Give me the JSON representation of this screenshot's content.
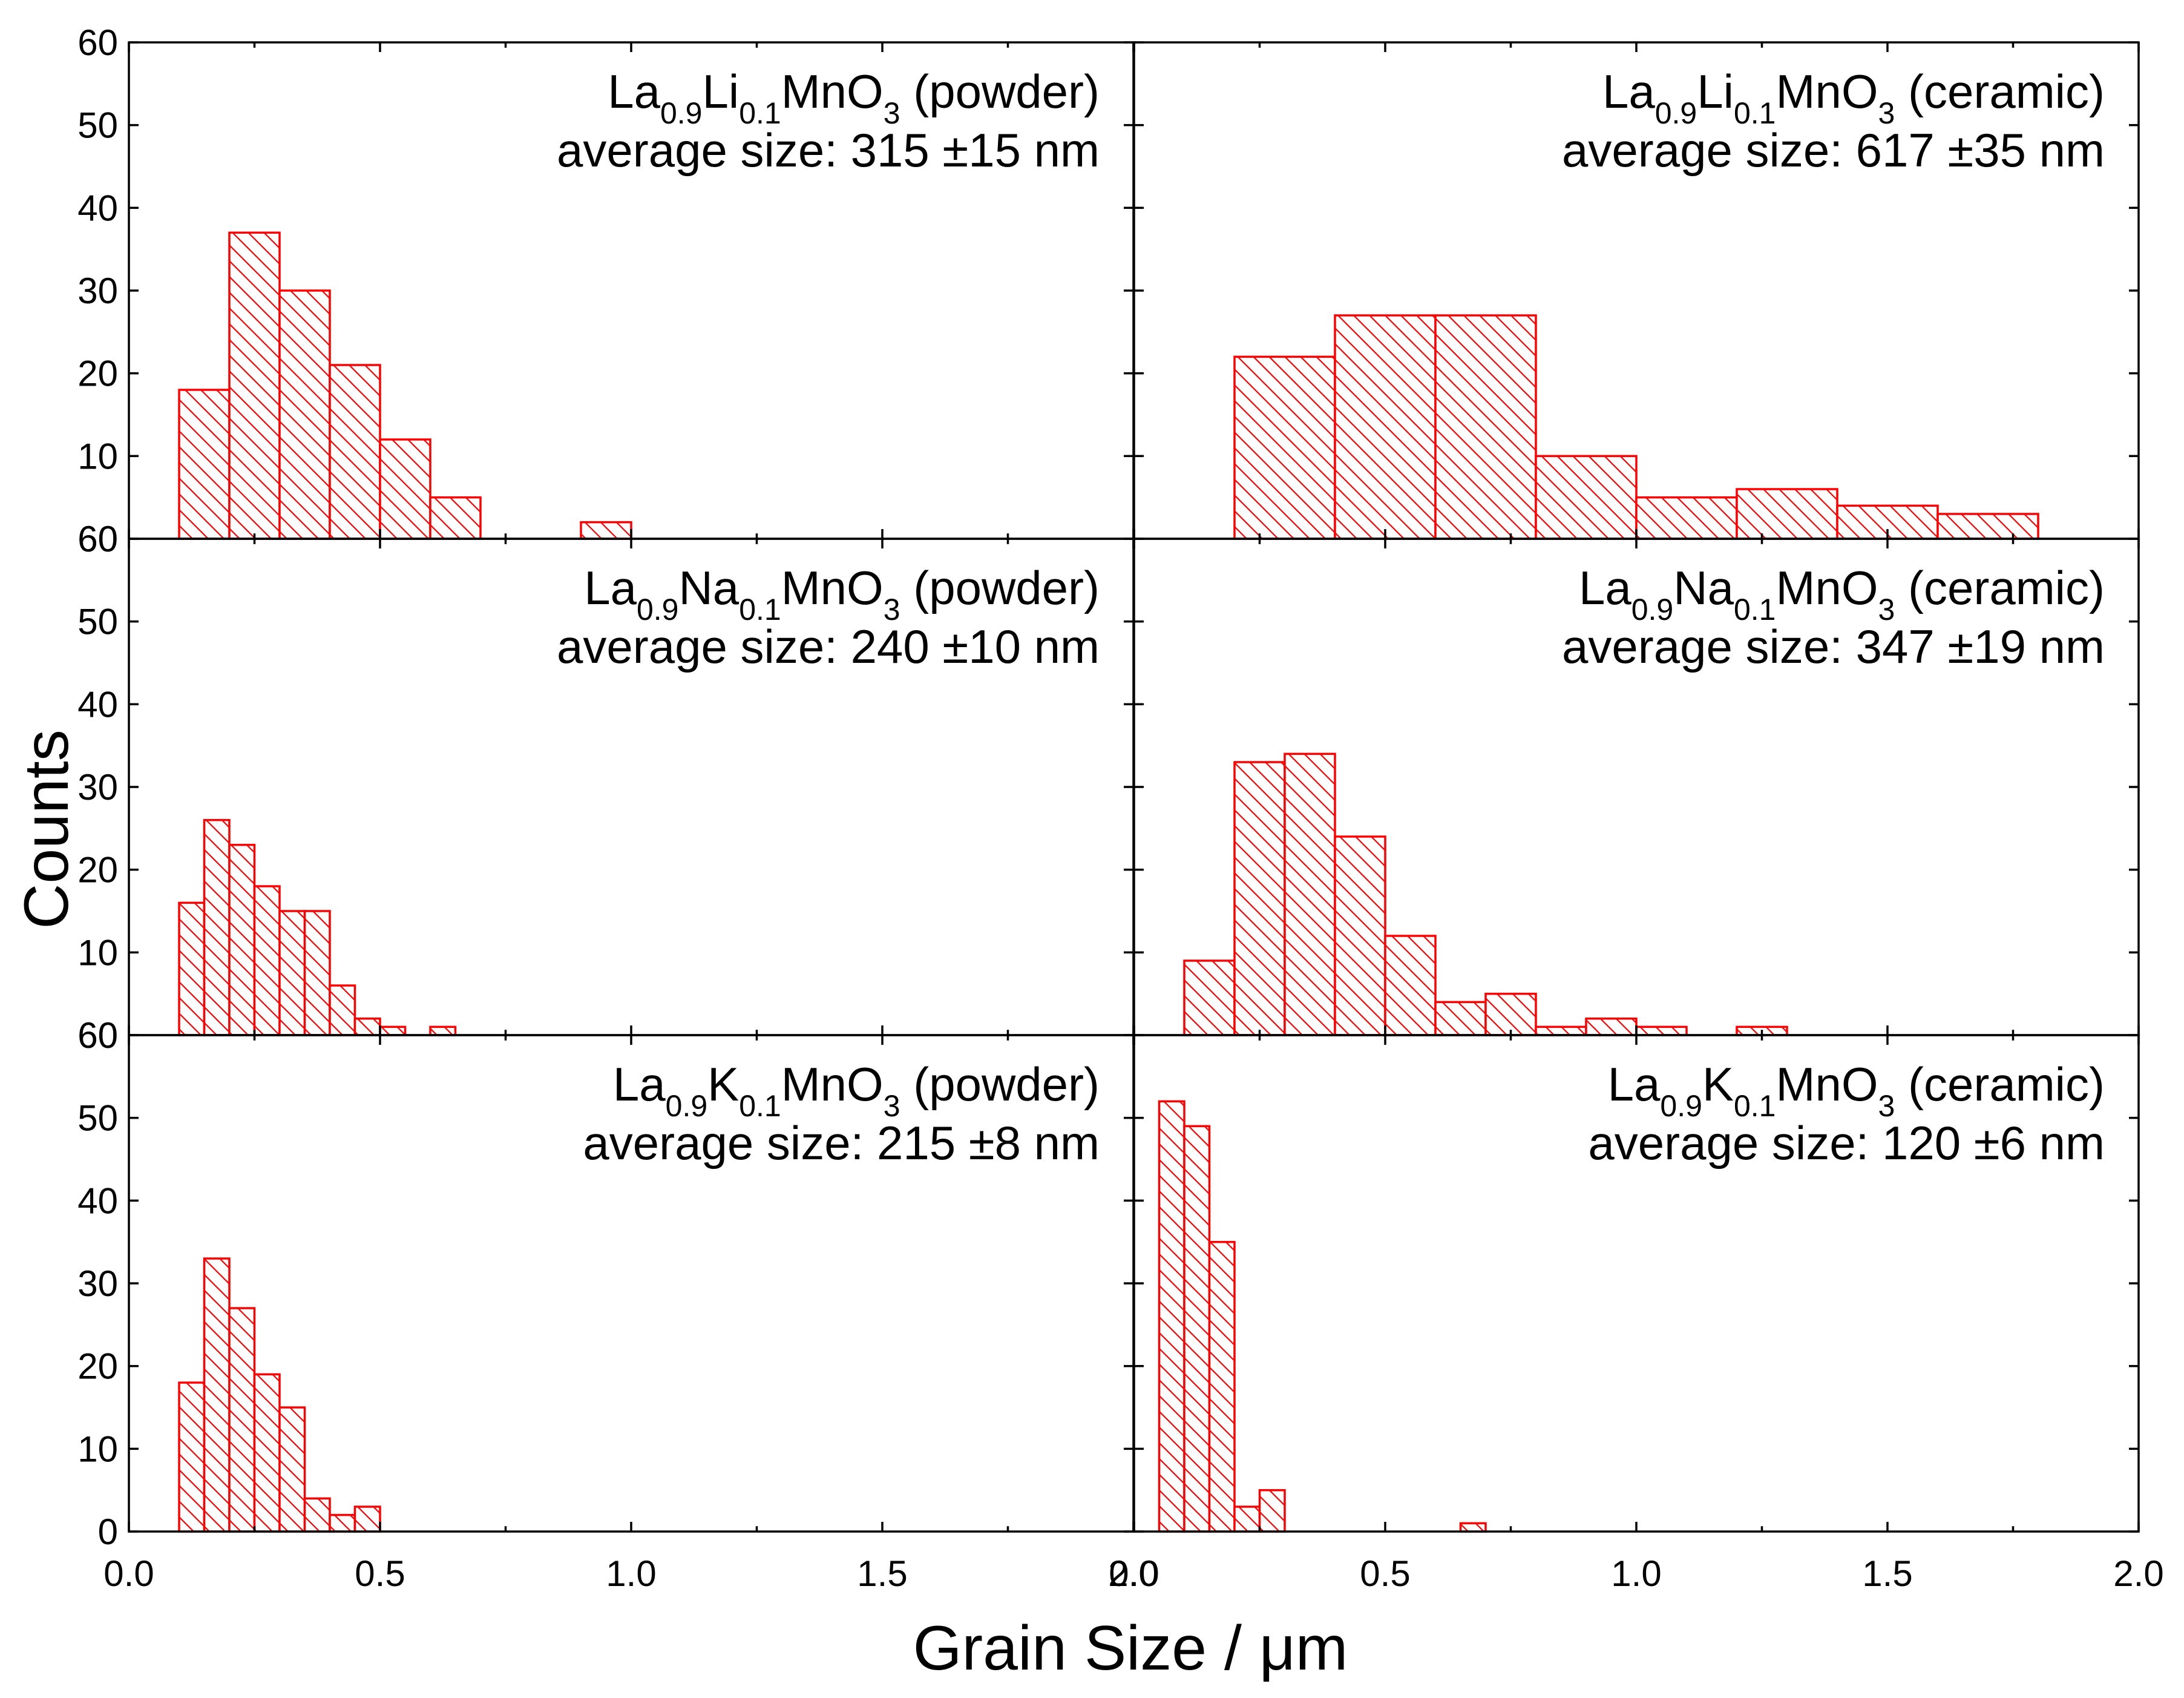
{
  "chart_data": {
    "type": "bar",
    "layout": "3 rows x 2 columns, shared axes",
    "xlabel": "Grain Size / μm",
    "ylabel": "Counts",
    "xlim": [
      0.0,
      2.0
    ],
    "ylim": [
      0,
      60
    ],
    "x_ticks": [
      "0.0",
      "0.5",
      "1.0",
      "1.5",
      "2.0"
    ],
    "y_ticks": [
      "0",
      "10",
      "20",
      "30",
      "40",
      "50",
      "60"
    ],
    "bar_color": "#ff0000",
    "fill_pattern": "diagonal hatch",
    "panels": [
      {
        "id": "li-powder",
        "row": 0,
        "col": 0,
        "label": {
          "pre": "La",
          "s1": "0.9",
          "el": "Li",
          "s2": "0.1",
          "mn": "MnO",
          "s3": "3",
          "state": " (powder)"
        },
        "average_size": "average size: 315 ±15 nm",
        "bins": [
          {
            "start": 0.1,
            "end": 0.2,
            "count": 18
          },
          {
            "start": 0.2,
            "end": 0.3,
            "count": 37
          },
          {
            "start": 0.3,
            "end": 0.4,
            "count": 30
          },
          {
            "start": 0.4,
            "end": 0.5,
            "count": 21
          },
          {
            "start": 0.5,
            "end": 0.6,
            "count": 12
          },
          {
            "start": 0.6,
            "end": 0.7,
            "count": 5
          },
          {
            "start": 0.9,
            "end": 1.0,
            "count": 2
          }
        ]
      },
      {
        "id": "li-ceramic",
        "row": 0,
        "col": 1,
        "label": {
          "pre": "La",
          "s1": "0.9",
          "el": "Li",
          "s2": "0.1",
          "mn": "MnO",
          "s3": "3",
          "state": " (ceramic)"
        },
        "average_size": "average size: 617 ±35 nm",
        "bins": [
          {
            "start": 0.2,
            "end": 0.4,
            "count": 22
          },
          {
            "start": 0.4,
            "end": 0.6,
            "count": 27
          },
          {
            "start": 0.6,
            "end": 0.8,
            "count": 27
          },
          {
            "start": 0.8,
            "end": 1.0,
            "count": 10
          },
          {
            "start": 1.0,
            "end": 1.2,
            "count": 5
          },
          {
            "start": 1.2,
            "end": 1.4,
            "count": 6
          },
          {
            "start": 1.4,
            "end": 1.6,
            "count": 4
          },
          {
            "start": 1.6,
            "end": 1.8,
            "count": 3
          }
        ]
      },
      {
        "id": "na-powder",
        "row": 1,
        "col": 0,
        "label": {
          "pre": "La",
          "s1": "0.9",
          "el": "Na",
          "s2": "0.1",
          "mn": "MnO",
          "s3": "3",
          "state": " (powder)"
        },
        "average_size": "average size: 240 ±10 nm",
        "bins": [
          {
            "start": 0.1,
            "end": 0.15,
            "count": 16
          },
          {
            "start": 0.15,
            "end": 0.2,
            "count": 26
          },
          {
            "start": 0.2,
            "end": 0.25,
            "count": 23
          },
          {
            "start": 0.25,
            "end": 0.3,
            "count": 18
          },
          {
            "start": 0.3,
            "end": 0.35,
            "count": 15
          },
          {
            "start": 0.35,
            "end": 0.4,
            "count": 15
          },
          {
            "start": 0.4,
            "end": 0.45,
            "count": 6
          },
          {
            "start": 0.45,
            "end": 0.5,
            "count": 2
          },
          {
            "start": 0.5,
            "end": 0.55,
            "count": 1
          },
          {
            "start": 0.6,
            "end": 0.65,
            "count": 1
          }
        ]
      },
      {
        "id": "na-ceramic",
        "row": 1,
        "col": 1,
        "label": {
          "pre": "La",
          "s1": "0.9",
          "el": "Na",
          "s2": "0.1",
          "mn": "MnO",
          "s3": "3",
          "state": " (ceramic)"
        },
        "average_size": "average size: 347 ±19 nm",
        "bins": [
          {
            "start": 0.1,
            "end": 0.2,
            "count": 9
          },
          {
            "start": 0.2,
            "end": 0.3,
            "count": 33
          },
          {
            "start": 0.3,
            "end": 0.4,
            "count": 34
          },
          {
            "start": 0.4,
            "end": 0.5,
            "count": 24
          },
          {
            "start": 0.5,
            "end": 0.6,
            "count": 12
          },
          {
            "start": 0.6,
            "end": 0.7,
            "count": 4
          },
          {
            "start": 0.7,
            "end": 0.8,
            "count": 5
          },
          {
            "start": 0.8,
            "end": 0.9,
            "count": 1
          },
          {
            "start": 0.9,
            "end": 1.0,
            "count": 2
          },
          {
            "start": 1.0,
            "end": 1.1,
            "count": 1
          },
          {
            "start": 1.2,
            "end": 1.3,
            "count": 1
          }
        ]
      },
      {
        "id": "k-powder",
        "row": 2,
        "col": 0,
        "label": {
          "pre": "La",
          "s1": "0.9",
          "el": "K",
          "s2": "0.1",
          "mn": "MnO",
          "s3": "3",
          "state": " (powder)"
        },
        "average_size": "average size: 215 ±8 nm",
        "bins": [
          {
            "start": 0.1,
            "end": 0.15,
            "count": 18
          },
          {
            "start": 0.15,
            "end": 0.2,
            "count": 33
          },
          {
            "start": 0.2,
            "end": 0.25,
            "count": 27
          },
          {
            "start": 0.25,
            "end": 0.3,
            "count": 19
          },
          {
            "start": 0.3,
            "end": 0.35,
            "count": 15
          },
          {
            "start": 0.35,
            "end": 0.4,
            "count": 4
          },
          {
            "start": 0.4,
            "end": 0.45,
            "count": 2
          },
          {
            "start": 0.45,
            "end": 0.5,
            "count": 3
          }
        ]
      },
      {
        "id": "k-ceramic",
        "row": 2,
        "col": 1,
        "label": {
          "pre": "La",
          "s1": "0.9",
          "el": "K",
          "s2": "0.1",
          "mn": "MnO",
          "s3": "3",
          "state": " (ceramic)"
        },
        "average_size": "average size: 120 ±6 nm",
        "bins": [
          {
            "start": 0.05,
            "end": 0.1,
            "count": 52
          },
          {
            "start": 0.1,
            "end": 0.15,
            "count": 49
          },
          {
            "start": 0.15,
            "end": 0.2,
            "count": 35
          },
          {
            "start": 0.2,
            "end": 0.25,
            "count": 3
          },
          {
            "start": 0.25,
            "end": 0.3,
            "count": 5
          },
          {
            "start": 0.65,
            "end": 0.7,
            "count": 1
          }
        ]
      }
    ]
  }
}
